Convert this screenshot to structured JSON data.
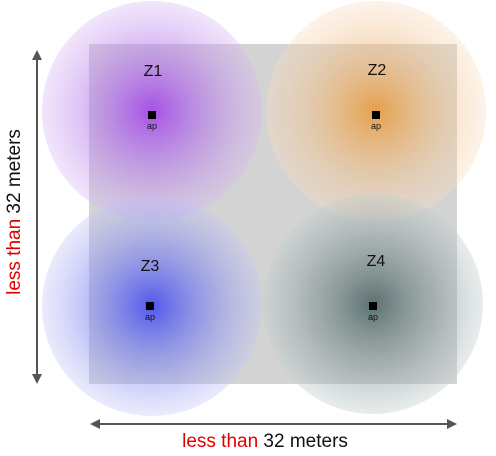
{
  "colors": {
    "area_fill": "#d3d3d3",
    "z1": "#a24be6",
    "z2": "#e79a3c",
    "z3": "#4a52ec",
    "z4": "#4f6666",
    "arrow": "#555555",
    "emphasis": "#e00000"
  },
  "zones": [
    {
      "label": "Z1",
      "ap_label": "ap",
      "color_key": "z1"
    },
    {
      "label": "Z2",
      "ap_label": "ap",
      "color_key": "z2"
    },
    {
      "label": "Z3",
      "ap_label": "ap",
      "color_key": "z3"
    },
    {
      "label": "Z4",
      "ap_label": "ap",
      "color_key": "z4"
    }
  ],
  "dimensions": {
    "vertical": {
      "emphasis": "less than",
      "rest": " 32 meters"
    },
    "horizontal": {
      "emphasis": "less than",
      "rest": " 32 meters"
    }
  }
}
